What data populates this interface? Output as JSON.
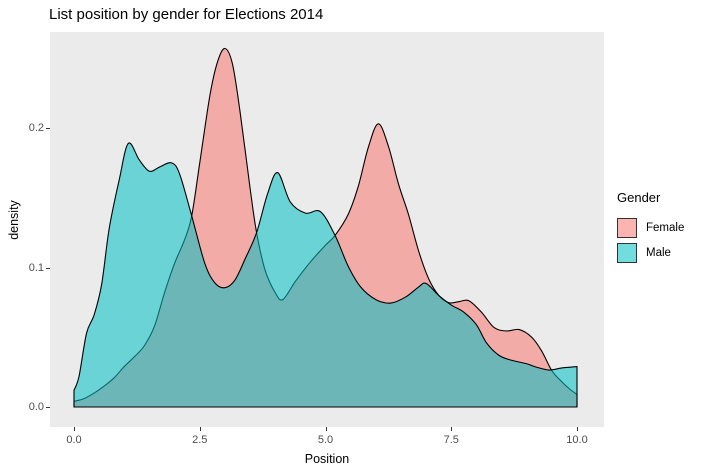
{
  "title": "List position by gender for Elections 2014",
  "chart_data": {
    "type": "area",
    "subtype": "density",
    "title": "List position by gender for Elections 2014",
    "xlabel": "Position",
    "ylabel": "density",
    "xlim": [
      0,
      10
    ],
    "ylim": [
      0,
      0.27
    ],
    "grid": false,
    "panel_background": "#EBEBEB",
    "outline_color": "#000000",
    "fill_opacity": 0.55,
    "x_ticks": [
      {
        "value": 0.0,
        "label": "0.0"
      },
      {
        "value": 2.5,
        "label": "2.5"
      },
      {
        "value": 5.0,
        "label": "5.0"
      },
      {
        "value": 7.5,
        "label": "7.5"
      },
      {
        "value": 10.0,
        "label": "10.0"
      }
    ],
    "y_ticks": [
      {
        "value": 0.0,
        "label": "0.0"
      },
      {
        "value": 0.1,
        "label": "0.1"
      },
      {
        "value": 0.2,
        "label": "0.2"
      }
    ],
    "legend": {
      "title": "Gender",
      "position": "right",
      "items": [
        {
          "label": "Female",
          "color": "#F8766D"
        },
        {
          "label": "Male",
          "color": "#00BFC4"
        }
      ]
    },
    "series": [
      {
        "name": "Female",
        "color": "#F8766D",
        "points": [
          [
            0,
            0.004
          ],
          [
            0.2,
            0.006
          ],
          [
            0.4,
            0.01
          ],
          [
            0.6,
            0.015
          ],
          [
            0.8,
            0.021
          ],
          [
            1.0,
            0.029
          ],
          [
            1.2,
            0.036
          ],
          [
            1.4,
            0.044
          ],
          [
            1.6,
            0.058
          ],
          [
            1.8,
            0.082
          ],
          [
            2.0,
            0.103
          ],
          [
            2.2,
            0.12
          ],
          [
            2.34,
            0.137
          ],
          [
            2.5,
            0.175
          ],
          [
            2.7,
            0.223
          ],
          [
            2.85,
            0.247
          ],
          [
            3.0,
            0.257
          ],
          [
            3.15,
            0.246
          ],
          [
            3.3,
            0.212
          ],
          [
            3.5,
            0.157
          ],
          [
            3.63,
            0.125
          ],
          [
            3.8,
            0.098
          ],
          [
            4.0,
            0.082
          ],
          [
            4.15,
            0.077
          ],
          [
            4.4,
            0.09
          ],
          [
            4.7,
            0.104
          ],
          [
            5.0,
            0.116
          ],
          [
            5.19,
            0.123
          ],
          [
            5.45,
            0.138
          ],
          [
            5.65,
            0.158
          ],
          [
            5.85,
            0.186
          ],
          [
            6.05,
            0.203
          ],
          [
            6.25,
            0.187
          ],
          [
            6.45,
            0.16
          ],
          [
            6.65,
            0.138
          ],
          [
            6.85,
            0.112
          ],
          [
            7.05,
            0.092
          ],
          [
            7.25,
            0.08
          ],
          [
            7.45,
            0.0748
          ],
          [
            7.65,
            0.0755
          ],
          [
            7.85,
            0.0762
          ],
          [
            8.1,
            0.068
          ],
          [
            8.35,
            0.057
          ],
          [
            8.6,
            0.0545
          ],
          [
            8.85,
            0.0555
          ],
          [
            9.1,
            0.05
          ],
          [
            9.3,
            0.04
          ],
          [
            9.5,
            0.026
          ],
          [
            9.7,
            0.018
          ],
          [
            9.85,
            0.013
          ],
          [
            10,
            0.009
          ]
        ]
      },
      {
        "name": "Male",
        "color": "#00BFC4",
        "points": [
          [
            0,
            0.012
          ],
          [
            0.1,
            0.022
          ],
          [
            0.25,
            0.053
          ],
          [
            0.4,
            0.066
          ],
          [
            0.55,
            0.088
          ],
          [
            0.7,
            0.128
          ],
          [
            0.9,
            0.163
          ],
          [
            1.08,
            0.189
          ],
          [
            1.3,
            0.177
          ],
          [
            1.5,
            0.169
          ],
          [
            1.7,
            0.172
          ],
          [
            1.94,
            0.175
          ],
          [
            2.1,
            0.167
          ],
          [
            2.34,
            0.137
          ],
          [
            2.6,
            0.103
          ],
          [
            2.8,
            0.089
          ],
          [
            3.0,
            0.0855
          ],
          [
            3.2,
            0.091
          ],
          [
            3.4,
            0.106
          ],
          [
            3.63,
            0.125
          ],
          [
            3.85,
            0.153
          ],
          [
            4.05,
            0.168
          ],
          [
            4.3,
            0.147
          ],
          [
            4.6,
            0.139
          ],
          [
            4.9,
            0.14
          ],
          [
            5.19,
            0.123
          ],
          [
            5.45,
            0.101
          ],
          [
            5.7,
            0.086
          ],
          [
            6.0,
            0.077
          ],
          [
            6.3,
            0.0745
          ],
          [
            6.6,
            0.079
          ],
          [
            6.85,
            0.086
          ],
          [
            7.0,
            0.0886
          ],
          [
            7.25,
            0.08
          ],
          [
            7.5,
            0.0731
          ],
          [
            7.75,
            0.068
          ],
          [
            8.0,
            0.059
          ],
          [
            8.2,
            0.046
          ],
          [
            8.45,
            0.037
          ],
          [
            8.7,
            0.0335
          ],
          [
            9.0,
            0.031
          ],
          [
            9.2,
            0.0285
          ],
          [
            9.45,
            0.0265
          ],
          [
            9.7,
            0.028
          ],
          [
            10,
            0.029
          ]
        ]
      }
    ]
  }
}
